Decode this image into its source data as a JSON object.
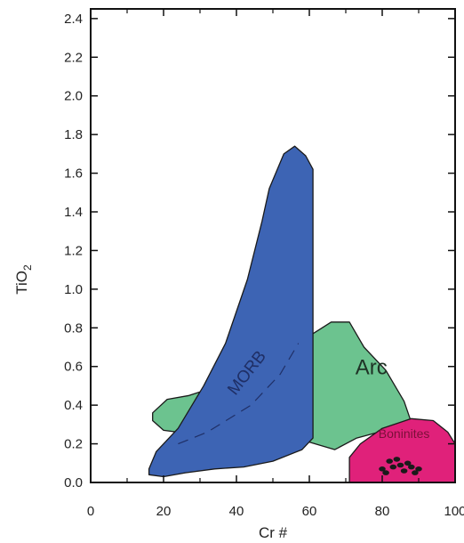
{
  "chart_data": {
    "type": "area",
    "title": "",
    "xlabel": "Cr #",
    "ylabel_main": "TiO",
    "ylabel_sub": "2",
    "xlim": [
      0,
      100
    ],
    "ylim": [
      0,
      2.45
    ],
    "xticks": [
      "0",
      "20",
      "40",
      "60",
      "80",
      "100"
    ],
    "yticks": [
      "0.0",
      "0.2",
      "0.4",
      "0.6",
      "0.8",
      "1.0",
      "1.2",
      "1.4",
      "1.6",
      "1.8",
      "2.0",
      "2.2",
      "2.4"
    ],
    "grid": false,
    "regions": [
      {
        "name": "Arc",
        "color": "#6cc38f",
        "points": [
          [
            17,
            0.36
          ],
          [
            21,
            0.43
          ],
          [
            27,
            0.45
          ],
          [
            58,
            0.64
          ],
          [
            61,
            0.77
          ],
          [
            66,
            0.83
          ],
          [
            71,
            0.83
          ],
          [
            75,
            0.7
          ],
          [
            81,
            0.58
          ],
          [
            86,
            0.42
          ],
          [
            88,
            0.31
          ],
          [
            79,
            0.26
          ],
          [
            73,
            0.23
          ],
          [
            68,
            0.18
          ],
          [
            67,
            0.17
          ],
          [
            58,
            0.22
          ],
          [
            50,
            0.25
          ],
          [
            40,
            0.27
          ],
          [
            28,
            0.25
          ],
          [
            20,
            0.27
          ],
          [
            17,
            0.32
          ]
        ]
      },
      {
        "name": "MORB",
        "color": "#3d64b4",
        "points": [
          [
            16,
            0.07
          ],
          [
            18,
            0.16
          ],
          [
            24,
            0.28
          ],
          [
            31,
            0.5
          ],
          [
            37,
            0.72
          ],
          [
            43,
            1.05
          ],
          [
            47,
            1.35
          ],
          [
            49,
            1.52
          ],
          [
            53,
            1.7
          ],
          [
            56,
            1.74
          ],
          [
            59,
            1.69
          ],
          [
            61,
            1.62
          ],
          [
            61,
            1.35
          ],
          [
            61,
            0.9
          ],
          [
            61,
            0.6
          ],
          [
            61,
            0.23
          ],
          [
            58,
            0.17
          ],
          [
            50,
            0.11
          ],
          [
            42,
            0.08
          ],
          [
            34,
            0.07
          ],
          [
            26,
            0.05
          ],
          [
            20,
            0.03
          ],
          [
            16,
            0.04
          ]
        ]
      },
      {
        "name": "Boninites",
        "color": "#e0217a",
        "points": [
          [
            71,
            0.0
          ],
          [
            71,
            0.13
          ],
          [
            74,
            0.2
          ],
          [
            80,
            0.28
          ],
          [
            88,
            0.33
          ],
          [
            94,
            0.32
          ],
          [
            98,
            0.26
          ],
          [
            100,
            0.2
          ],
          [
            101,
            0.1
          ],
          [
            100,
            0.0
          ]
        ]
      }
    ],
    "morb_trend": [
      [
        24,
        0.2
      ],
      [
        32,
        0.26
      ],
      [
        44,
        0.4
      ],
      [
        52,
        0.56
      ],
      [
        57,
        0.72
      ]
    ],
    "boninite_points": [
      [
        80,
        0.07
      ],
      [
        82,
        0.11
      ],
      [
        83,
        0.08
      ],
      [
        84,
        0.12
      ],
      [
        85,
        0.09
      ],
      [
        86,
        0.06
      ],
      [
        87,
        0.1
      ],
      [
        88,
        0.08
      ],
      [
        89,
        0.05
      ],
      [
        90,
        0.07
      ],
      [
        81,
        0.05
      ]
    ],
    "annotations": [
      {
        "text": "MORB",
        "x": 44,
        "y": 0.55,
        "color": "#1f2f66"
      },
      {
        "text": "Arc",
        "x": 77,
        "y": 0.56,
        "color": "#1f3326"
      },
      {
        "text": "Boninites",
        "x": 86,
        "y": 0.23,
        "color": "#7a1038"
      }
    ]
  }
}
